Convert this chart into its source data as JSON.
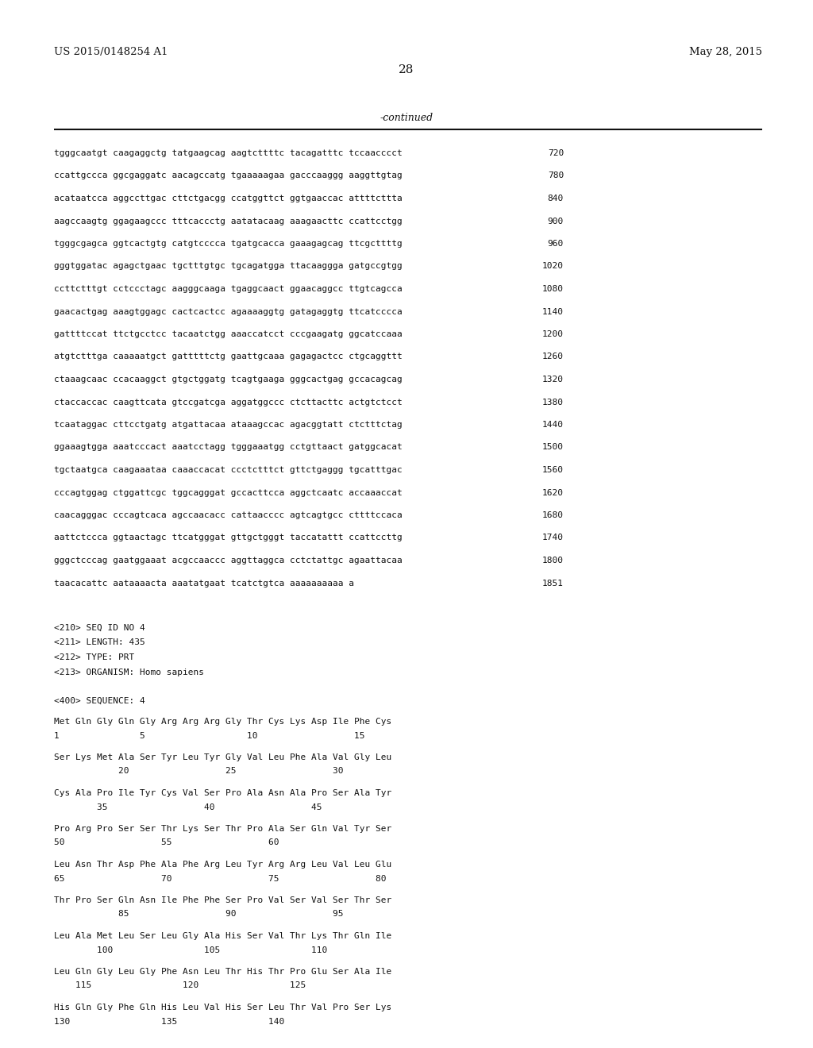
{
  "background_color": "#ffffff",
  "header_left": "US 2015/0148254 A1",
  "header_right": "May 28, 2015",
  "page_number": "28",
  "continued_label": "-continued",
  "sequence_lines": [
    [
      "tgggcaatgt caagaggctg tatgaagcag aagtcttttc tacagatttc tccaacccct",
      "720"
    ],
    [
      "ccattgccca ggcgaggatc aacagccatg tgaaaaagaa gacccaaggg aaggttgtag",
      "780"
    ],
    [
      "acataatcca aggccttgac cttctgacgg ccatggttct ggtgaaccac attttcttta",
      "840"
    ],
    [
      "aagccaagtg ggagaagccc tttcaccctg aatatacaag aaagaacttc ccattcctgg",
      "900"
    ],
    [
      "tgggcgagca ggtcactgtg catgtcccca tgatgcacca gaaagagcag ttcgcttttg",
      "960"
    ],
    [
      "gggtggatac agagctgaac tgctttgtgc tgcagatgga ttacaaggga gatgccgtgg",
      "1020"
    ],
    [
      "ccttctttgt cctccctagc aagggcaaga tgaggcaact ggaacaggcc ttgtcagcca",
      "1080"
    ],
    [
      "gaacactgag aaagtggagc cactcactcc agaaaaggtg gatagaggtg ttcatcccca",
      "1140"
    ],
    [
      "gattttccat ttctgcctcc tacaatctgg aaaccatcct cccgaagatg ggcatccaaa",
      "1200"
    ],
    [
      "atgtctttga caaaaatgct gatttttctg gaattgcaaa gagagactcc ctgcaggttt",
      "1260"
    ],
    [
      "ctaaagcaac ccacaaggct gtgctggatg tcagtgaaga gggcactgag gccacagcag",
      "1320"
    ],
    [
      "ctaccaccac caagttcata gtccgatcga aggatggccc ctcttacttc actgtctcct",
      "1380"
    ],
    [
      "tcaataggac cttcctgatg atgattacaa ataaagccac agacggtatt ctctttctag",
      "1440"
    ],
    [
      "ggaaagtgga aaatcccact aaatcctagg tgggaaatgg cctgttaact gatggcacat",
      "1500"
    ],
    [
      "tgctaatgca caagaaataa caaaccacat ccctctttct gttctgaggg tgcatttgac",
      "1560"
    ],
    [
      "cccagtggag ctggattcgc tggcagggat gccacttcca aggctcaatc accaaaccat",
      "1620"
    ],
    [
      "caacagggac cccagtcaca agccaacacc cattaacccc agtcagtgcc cttttccaca",
      "1680"
    ],
    [
      "aattctccca ggtaactagc ttcatgggat gttgctgggt taccatattt ccattccttg",
      "1740"
    ],
    [
      "gggctcccag gaatggaaat acgccaaccc aggttaggca cctctattgc agaattacaa",
      "1800"
    ],
    [
      "taacacattc aataaaacta aaatatgaat tcatctgtca aaaaaaaaaa a",
      "1851"
    ]
  ],
  "metadata_lines": [
    "<210> SEQ ID NO 4",
    "<211> LENGTH: 435",
    "<212> TYPE: PRT",
    "<213> ORGANISM: Homo sapiens"
  ],
  "sequence400_label": "<400> SEQUENCE: 4",
  "protein_blocks": [
    {
      "seq": "Met Gln Gly Gln Gly Arg Arg Arg Gly Thr Cys Lys Asp Ile Phe Cys",
      "num": "1               5                   10                  15"
    },
    {
      "seq": "Ser Lys Met Ala Ser Tyr Leu Tyr Gly Val Leu Phe Ala Val Gly Leu",
      "num": "            20                  25                  30"
    },
    {
      "seq": "Cys Ala Pro Ile Tyr Cys Val Ser Pro Ala Asn Ala Pro Ser Ala Tyr",
      "num": "        35                  40                  45"
    },
    {
      "seq": "Pro Arg Pro Ser Ser Thr Lys Ser Thr Pro Ala Ser Gln Val Tyr Ser",
      "num": "50                  55                  60"
    },
    {
      "seq": "Leu Asn Thr Asp Phe Ala Phe Arg Leu Tyr Arg Arg Leu Val Leu Glu",
      "num": "65                  70                  75                  80"
    },
    {
      "seq": "Thr Pro Ser Gln Asn Ile Phe Phe Ser Pro Val Ser Val Ser Thr Ser",
      "num": "            85                  90                  95"
    },
    {
      "seq": "Leu Ala Met Leu Ser Leu Gly Ala His Ser Val Thr Lys Thr Gln Ile",
      "num": "        100                 105                 110"
    },
    {
      "seq": "Leu Gln Gly Leu Gly Phe Asn Leu Thr His Thr Pro Glu Ser Ala Ile",
      "num": "    115                 120                 125"
    },
    {
      "seq": "His Gln Gly Phe Gln His Leu Val His Ser Leu Thr Val Pro Ser Lys",
      "num": "130                 135                 140"
    }
  ]
}
